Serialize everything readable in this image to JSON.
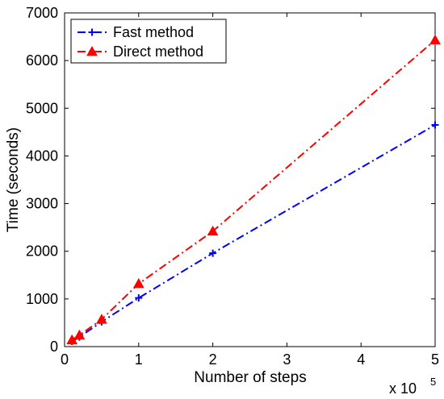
{
  "chart_data": {
    "type": "line",
    "xlabel": "Number of steps",
    "ylabel": "Time (seconds)",
    "x_multiplier": "x 10",
    "x_multiplier_exponent": "5",
    "xlim": [
      0,
      5
    ],
    "ylim": [
      0,
      7000
    ],
    "xticks": [
      "0",
      "1",
      "2",
      "3",
      "4",
      "5"
    ],
    "yticks": [
      "0",
      "1000",
      "2000",
      "3000",
      "4000",
      "5000",
      "6000",
      "7000"
    ],
    "grid": false,
    "legend_position": "top-left",
    "series": [
      {
        "name": "Fast method",
        "color": "#0000ff",
        "marker": "plus",
        "line_style": "dash-dot",
        "x": [
          0.1,
          0.2,
          0.5,
          1,
          2,
          5
        ],
        "y": [
          110,
          200,
          520,
          1020,
          1960,
          4650
        ]
      },
      {
        "name": "Direct method",
        "color": "#ff0000",
        "marker": "triangle",
        "line_style": "dash-dot",
        "x": [
          0.1,
          0.2,
          0.5,
          1,
          2,
          5
        ],
        "y": [
          140,
          240,
          570,
          1320,
          2420,
          6430
        ]
      }
    ]
  }
}
